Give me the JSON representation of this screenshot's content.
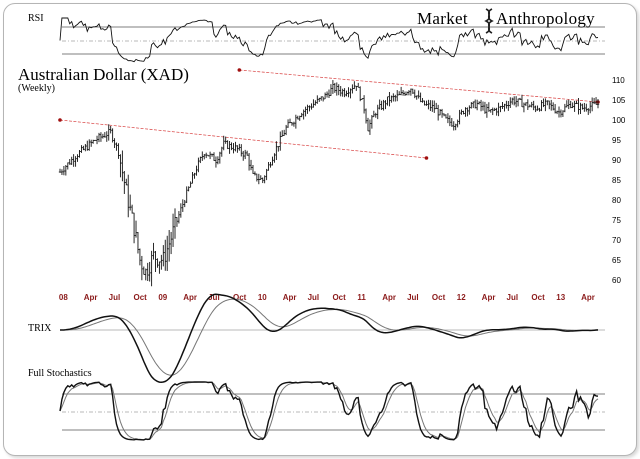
{
  "chart_data": {
    "type": "ohlc",
    "title": "Australian Dollar (XAD)",
    "subtitle": "(Weekly)",
    "brand": {
      "left": "Market",
      "right": "Anthropology",
      "logo_icon": "dna-helix-icon"
    },
    "y_ticks": [
      60,
      65,
      70,
      75,
      80,
      85,
      90,
      95,
      100,
      105,
      110
    ],
    "ylim": [
      58,
      113
    ],
    "x_ticks": [
      "08",
      "Apr",
      "Jul",
      "Oct",
      "09",
      "Apr",
      "Jul",
      "Oct",
      "10",
      "Apr",
      "Jul",
      "Oct",
      "11",
      "Apr",
      "Jul",
      "Oct",
      "12",
      "Apr",
      "Jul",
      "Oct",
      "13",
      "Apr"
    ],
    "x_range_weeks": [
      0,
      276
    ],
    "price_keypoints": [
      [
        0,
        87
      ],
      [
        8,
        91
      ],
      [
        18,
        95
      ],
      [
        26,
        97
      ],
      [
        30,
        92
      ],
      [
        34,
        82
      ],
      [
        38,
        73
      ],
      [
        41,
        65
      ],
      [
        44,
        62
      ],
      [
        48,
        66
      ],
      [
        53,
        65
      ],
      [
        58,
        72
      ],
      [
        63,
        79
      ],
      [
        70,
        88
      ],
      [
        74,
        92
      ],
      [
        80,
        90
      ],
      [
        84,
        94
      ],
      [
        90,
        93
      ],
      [
        96,
        91
      ],
      [
        99,
        86
      ],
      [
        104,
        85
      ],
      [
        110,
        92
      ],
      [
        116,
        98
      ],
      [
        124,
        102
      ],
      [
        130,
        104
      ],
      [
        136,
        106
      ],
      [
        140,
        108
      ],
      [
        146,
        107
      ],
      [
        152,
        109
      ],
      [
        156,
        103
      ],
      [
        158,
        98
      ],
      [
        162,
        102
      ],
      [
        168,
        105
      ],
      [
        174,
        106
      ],
      [
        180,
        108
      ],
      [
        186,
        104
      ],
      [
        192,
        103
      ],
      [
        198,
        100
      ],
      [
        202,
        99
      ],
      [
        208,
        103
      ],
      [
        214,
        104
      ],
      [
        220,
        102
      ],
      [
        226,
        103
      ],
      [
        232,
        105
      ],
      [
        238,
        104
      ],
      [
        244,
        103
      ],
      [
        250,
        104
      ],
      [
        256,
        102
      ],
      [
        262,
        104
      ],
      [
        268,
        103
      ],
      [
        276,
        104
      ]
    ],
    "trendlines": [
      {
        "name": "upper",
        "from": [
          92,
          112.5
        ],
        "to": [
          276,
          104.5
        ]
      },
      {
        "name": "lower",
        "from": [
          0,
          100
        ],
        "to": [
          188,
          90.5
        ]
      }
    ],
    "panels": [
      {
        "name": "RSI",
        "label": "RSI",
        "type": "line",
        "guides": 3
      },
      {
        "name": "TRIX",
        "label": "TRIX",
        "type": "two-line",
        "zero_line": true
      },
      {
        "name": "FullStochastics",
        "label": "Full Stochastics",
        "type": "two-line",
        "guides": 3
      }
    ],
    "colors": {
      "trendline": "#d84040",
      "trendline_marker": "#a01010",
      "x_tick_label": "#8b1a1a"
    }
  }
}
